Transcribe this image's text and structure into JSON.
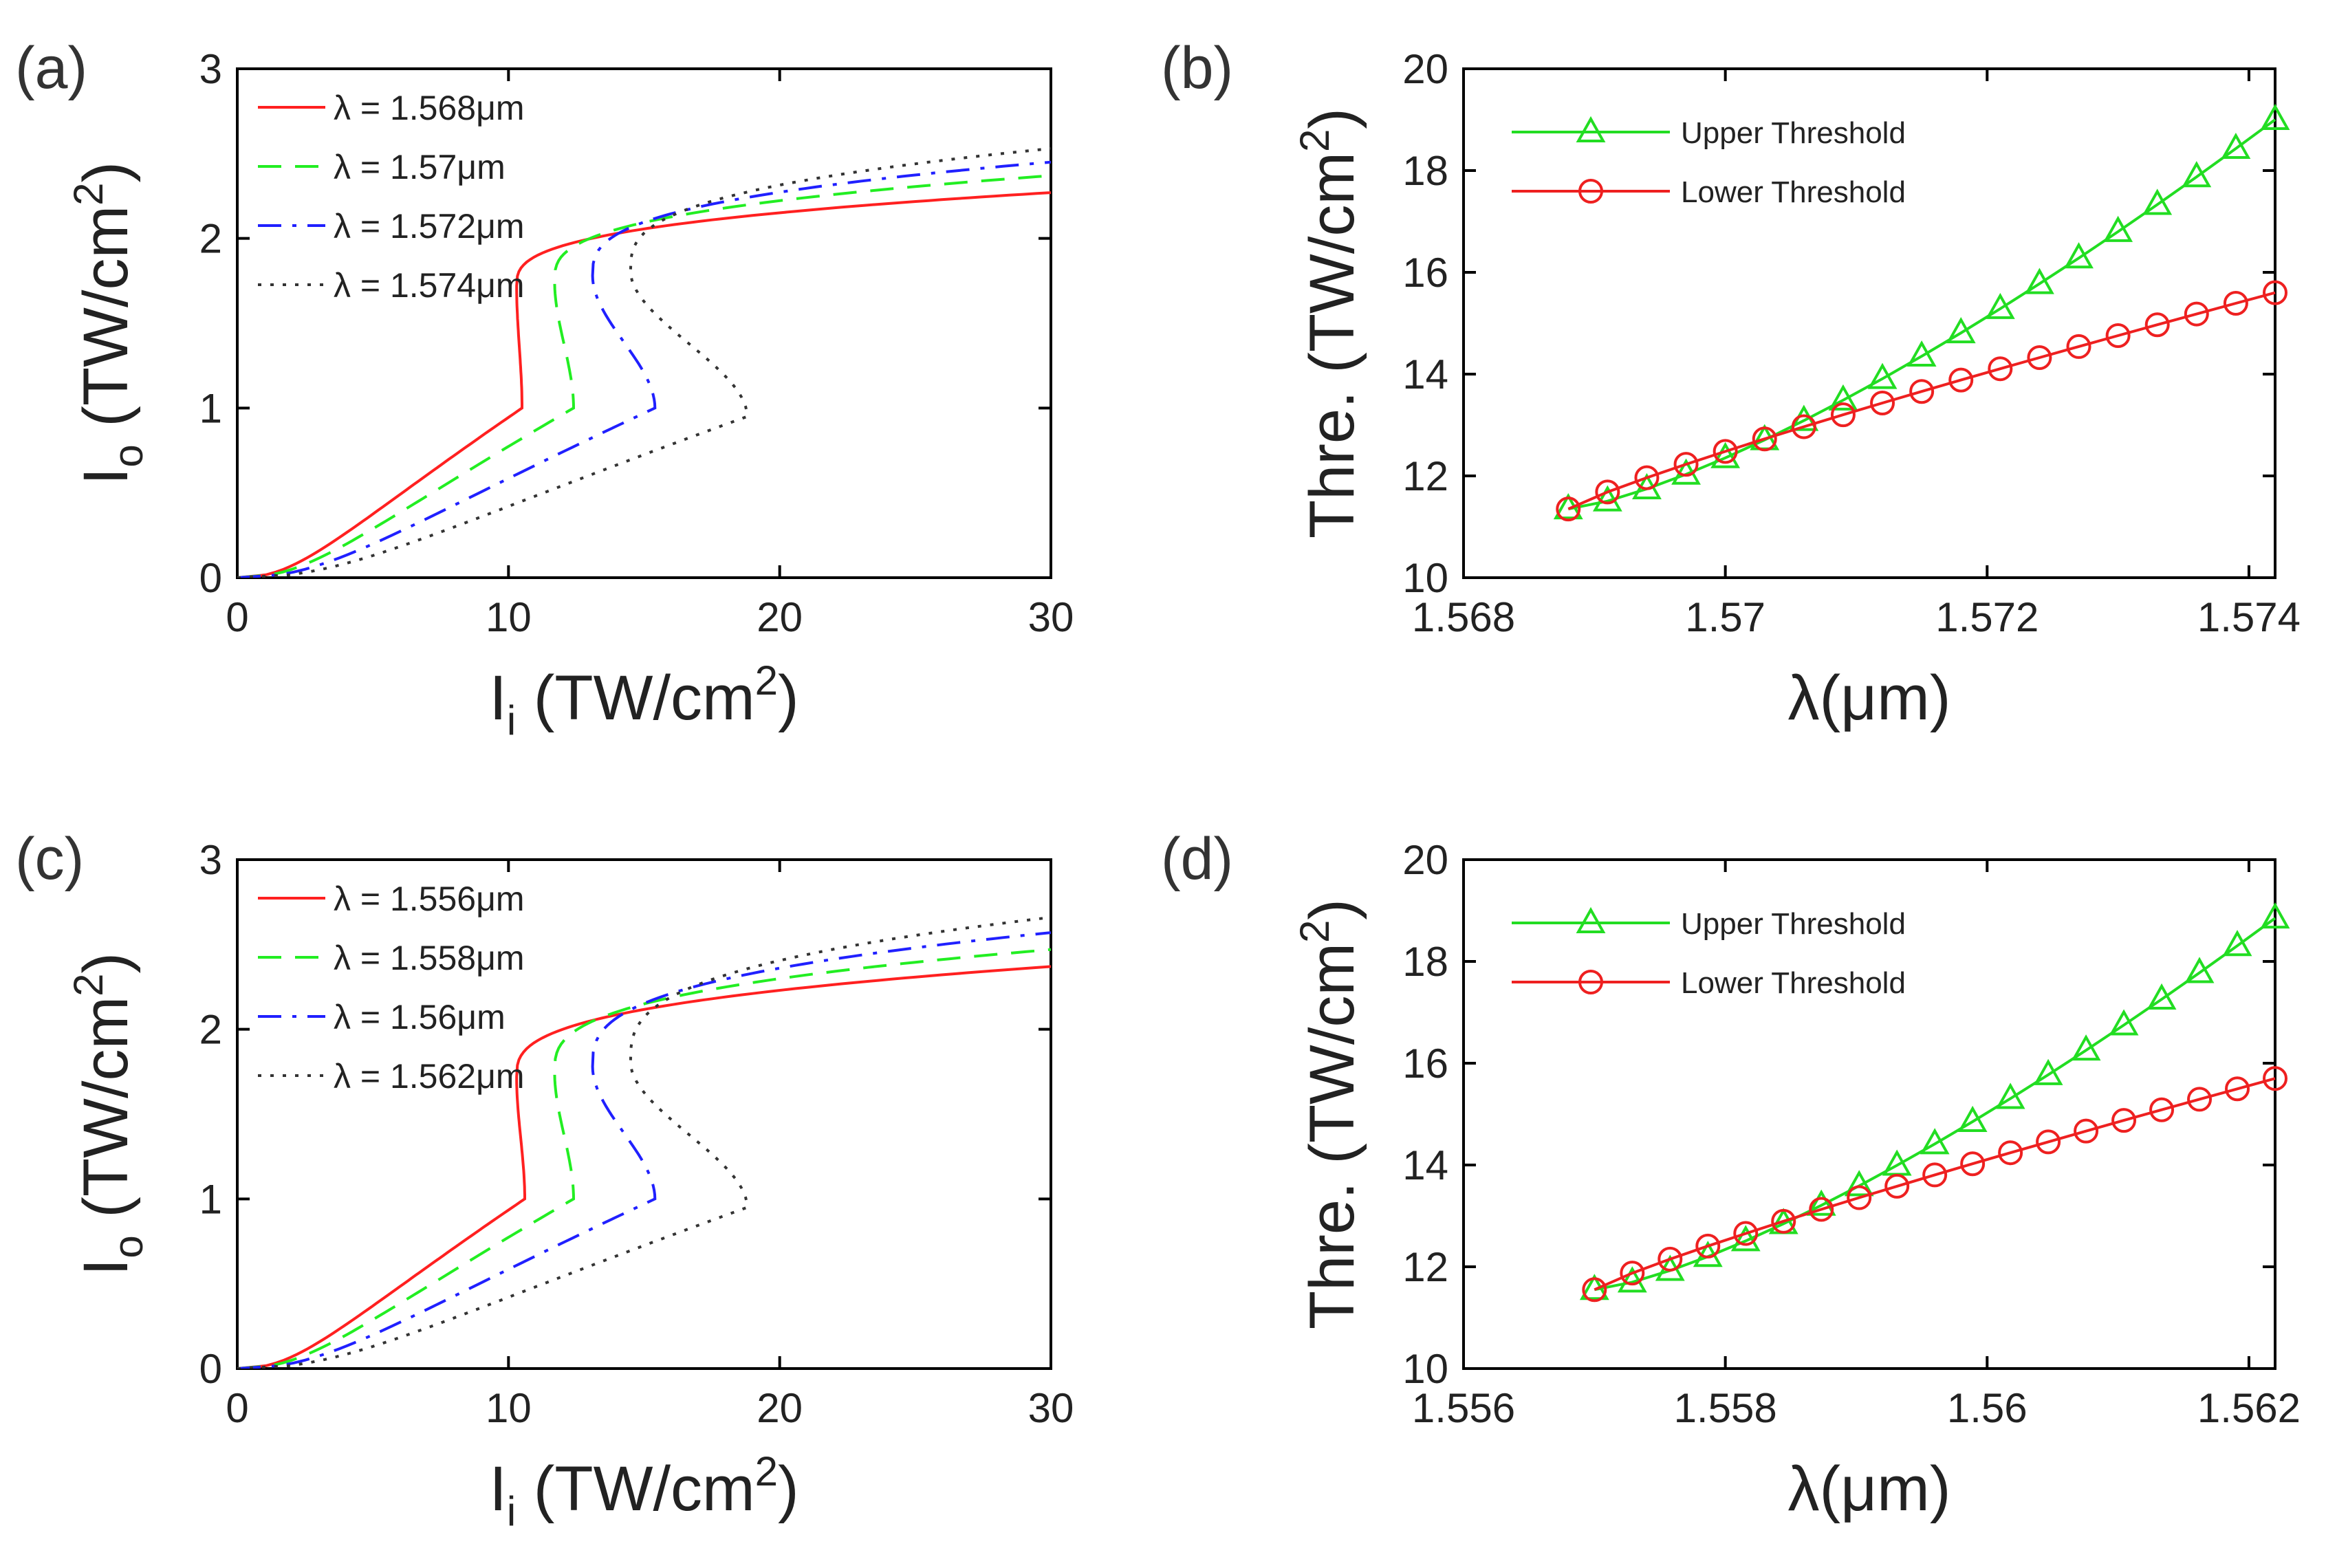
{
  "chart_data": [
    {
      "panel": "(a)",
      "type": "line",
      "xlabel": "Ii (TW/cm2)",
      "ylabel": "Io (TW/cm2)",
      "xlim": [
        0,
        30
      ],
      "ylim": [
        0,
        3
      ],
      "xticks": [
        "0",
        "10",
        "20",
        "30"
      ],
      "yticks": [
        "0",
        "1",
        "2",
        "3"
      ],
      "legend_position": "top-left",
      "series": [
        {
          "name": "λ = 1.568μm",
          "style": "solid",
          "color": "#ff2020",
          "turn_x": 10.5,
          "turn_y": 1.0,
          "end_y": 2.27
        },
        {
          "name": "λ = 1.57μm",
          "style": "dashed",
          "color": "#22ee22",
          "turn_x": 12.4,
          "turn_y": 1.0,
          "end_y": 2.37
        },
        {
          "name": "λ = 1.572μm",
          "style": "dashdot",
          "color": "#2020ff",
          "turn_x": 15.4,
          "turn_y": 1.0,
          "end_y": 2.45
        },
        {
          "name": "λ = 1.574μm",
          "style": "dotted",
          "color": "#333333",
          "turn_x": 18.8,
          "turn_y": 0.95,
          "end_y": 2.53
        }
      ]
    },
    {
      "panel": "(b)",
      "type": "line",
      "xlabel": "λ(μm)",
      "ylabel": "Thre. (TW/cm2)",
      "xlim": [
        1.568,
        1.5742
      ],
      "ylim": [
        10,
        20
      ],
      "xticks": [
        "1.568",
        "1.57",
        "1.572",
        "1.574"
      ],
      "xtick_values": [
        1.568,
        1.57,
        1.572,
        1.574
      ],
      "yticks": [
        "10",
        "12",
        "14",
        "16",
        "18",
        "20"
      ],
      "legend_position": "top-left",
      "series": [
        {
          "name": "Upper Threshold",
          "marker": "triangle",
          "color": "#22dd22",
          "x_start": 1.5688,
          "x_end": 1.5742,
          "y_start": 11.35,
          "y_end": 19.0,
          "curvature": 0.9,
          "points": 19
        },
        {
          "name": "Lower Threshold",
          "marker": "circle",
          "color": "#ee2020",
          "x_start": 1.5688,
          "x_end": 1.5742,
          "y_start": 11.35,
          "y_end": 15.6,
          "curvature": -0.35,
          "points": 19
        }
      ]
    },
    {
      "panel": "(c)",
      "type": "line",
      "xlabel": "Ii (TW/cm2)",
      "ylabel": "Io (TW/cm2)",
      "xlim": [
        0,
        30
      ],
      "ylim": [
        0,
        3
      ],
      "xticks": [
        "0",
        "10",
        "20",
        "30"
      ],
      "yticks": [
        "0",
        "1",
        "2",
        "3"
      ],
      "legend_position": "top-left",
      "series": [
        {
          "name": "λ = 1.556μm",
          "style": "solid",
          "color": "#ff2020",
          "turn_x": 10.6,
          "turn_y": 1.0,
          "end_y": 2.37
        },
        {
          "name": "λ = 1.558μm",
          "style": "dashed",
          "color": "#22ee22",
          "turn_x": 12.4,
          "turn_y": 1.0,
          "end_y": 2.47
        },
        {
          "name": "λ = 1.56μm",
          "style": "dashdot",
          "color": "#2020ff",
          "turn_x": 15.4,
          "turn_y": 1.0,
          "end_y": 2.57
        },
        {
          "name": "λ = 1.562μm",
          "style": "dotted",
          "color": "#333333",
          "turn_x": 18.8,
          "turn_y": 0.95,
          "end_y": 2.66
        }
      ]
    },
    {
      "panel": "(d)",
      "type": "line",
      "xlabel": "λ(μm)",
      "ylabel": "Thre. (TW/cm2)",
      "xlim": [
        1.556,
        1.5622
      ],
      "ylim": [
        10,
        20
      ],
      "xticks": [
        "1.556",
        "1.558",
        "1.56",
        "1.562"
      ],
      "xtick_values": [
        1.556,
        1.558,
        1.56,
        1.562
      ],
      "yticks": [
        "10",
        "12",
        "14",
        "16",
        "18",
        "20"
      ],
      "legend_position": "top-left",
      "series": [
        {
          "name": "Upper Threshold",
          "marker": "triangle",
          "color": "#22dd22",
          "x_start": 1.557,
          "x_end": 1.5622,
          "y_start": 11.55,
          "y_end": 18.85,
          "curvature": 0.9,
          "points": 19
        },
        {
          "name": "Lower Threshold",
          "marker": "circle",
          "color": "#ee2020",
          "x_start": 1.557,
          "x_end": 1.5622,
          "y_start": 11.55,
          "y_end": 15.7,
          "curvature": -0.35,
          "points": 19
        }
      ]
    }
  ]
}
